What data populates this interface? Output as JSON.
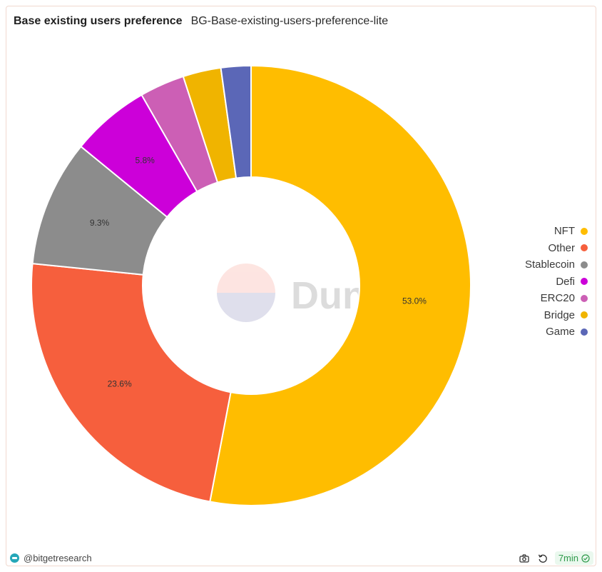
{
  "header": {
    "title": "Base existing users preference",
    "subtitle": "BG-Base-existing-users-preference-lite"
  },
  "chart_data": {
    "type": "pie",
    "donut": true,
    "categories": [
      "NFT",
      "Other",
      "Stablecoin",
      "Defi",
      "ERC20",
      "Bridge",
      "Game"
    ],
    "values": [
      53.0,
      23.6,
      9.3,
      5.8,
      3.3,
      2.8,
      2.2
    ],
    "labels": [
      "53.0%",
      "23.6%",
      "9.3%",
      "5.8%",
      "",
      "",
      ""
    ],
    "colors": [
      "#ffbd00",
      "#f65f3d",
      "#8c8c8c",
      "#cc00d9",
      "#cc5fb5",
      "#f0b400",
      "#5b67b7"
    ],
    "legend_position": "right"
  },
  "watermark": {
    "text": "Dune"
  },
  "footer": {
    "author": "@bitgetresearch",
    "refresh_badge": "7min"
  },
  "icons": {
    "author_avatar": "team-avatar-icon",
    "screenshot": "camera-icon",
    "refresh": "refresh-icon",
    "status": "check-circle-icon"
  }
}
